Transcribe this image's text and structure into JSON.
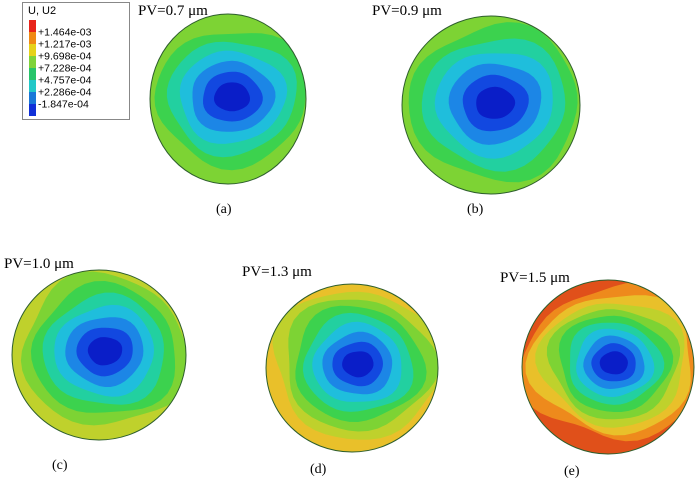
{
  "legend": {
    "title": "U, U2",
    "values": [
      "+1.464e-03",
      "+1.217e-03",
      "+9.698e-04",
      "+7.228e-04",
      "+4.757e-04",
      "+2.286e-04",
      "-1.847e-04"
    ],
    "colors": [
      "#e8241a",
      "#f08a14",
      "#e6d21a",
      "#7fd33a",
      "#27c46a",
      "#22c8c8",
      "#1a78d8",
      "#1030d8"
    ]
  },
  "contour_palette": [
    "#0a1ec8",
    "#1248e0",
    "#1c86e6",
    "#1fbedc",
    "#22d0a0",
    "#3cd24e",
    "#7dd334",
    "#bfd12c",
    "#e9c02a",
    "#ee8a1c",
    "#e0501a"
  ],
  "plots": [
    {
      "id": "a",
      "pv_label": "PV=0.7 μm",
      "caption": "(a)",
      "levels": 6,
      "rim": 6
    },
    {
      "id": "b",
      "pv_label": "PV=0.9 μm",
      "caption": "(b)",
      "levels": 6,
      "rim": 6
    },
    {
      "id": "c",
      "pv_label": "PV=1.0 μm",
      "caption": "(c)",
      "levels": 7,
      "rim": 7
    },
    {
      "id": "d",
      "pv_label": "PV=1.3 μm",
      "caption": "(d)",
      "levels": 8,
      "rim": 8
    },
    {
      "id": "e",
      "pv_label": "PV=1.5 μm",
      "caption": "(e)",
      "levels": 10,
      "rim": 10
    }
  ]
}
